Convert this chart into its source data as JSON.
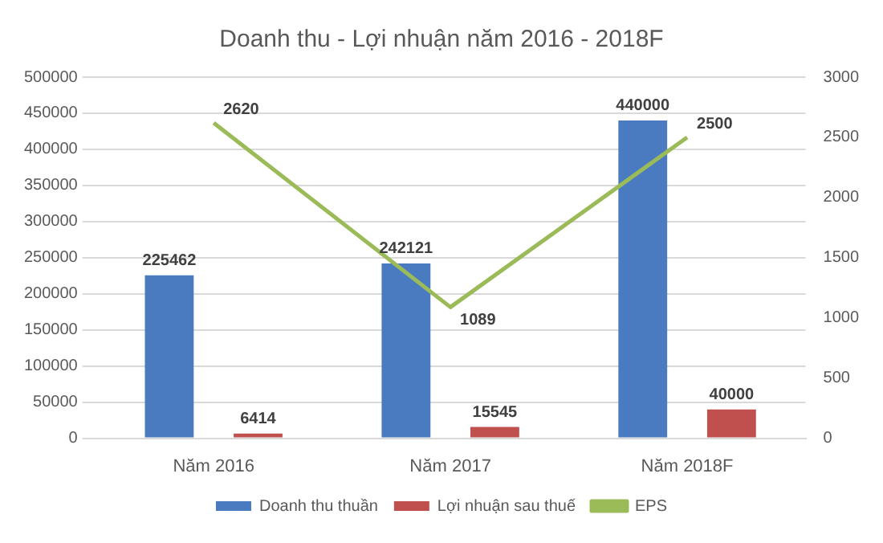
{
  "chart_data": {
    "type": "bar",
    "title": "Doanh thu - Lợi nhuận năm 2016 - 2018F",
    "categories": [
      "Năm 2016",
      "Năm 2017",
      "Năm 2018F"
    ],
    "series": [
      {
        "name": "Doanh thu thuần",
        "color": "#4a7bc0",
        "values": [
          225462,
          242121,
          440000
        ]
      },
      {
        "name": "Lợi nhuận sau thuế",
        "color": "#c0504d",
        "values": [
          6414,
          15545,
          40000
        ]
      },
      {
        "name": "EPS",
        "type": "line",
        "axis": "y2",
        "color": "#9bbb59",
        "values": [
          2620,
          1089,
          2500
        ]
      }
    ],
    "ylim": [
      0,
      500000
    ],
    "yticks": [
      0,
      50000,
      100000,
      150000,
      200000,
      250000,
      300000,
      350000,
      400000,
      450000,
      500000
    ],
    "y2lim": [
      0,
      3000
    ],
    "y2ticks": [
      0,
      500,
      1000,
      1500,
      2000,
      2500,
      3000
    ],
    "grid": "y",
    "legend": "bottom",
    "data_labels": true,
    "marker": "none"
  }
}
